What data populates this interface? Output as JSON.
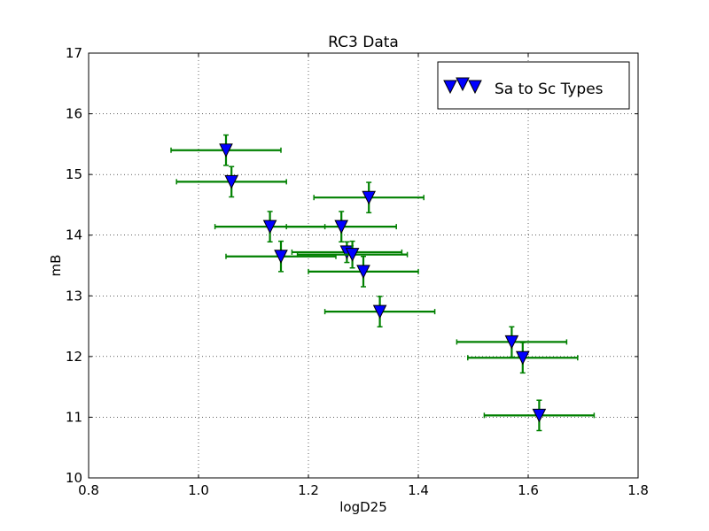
{
  "chart_data": {
    "type": "scatter",
    "title": "RC3 Data",
    "xlabel": "logD25",
    "ylabel": "mB",
    "xlim": [
      0.8,
      1.8
    ],
    "ylim": [
      10,
      17
    ],
    "x_ticks": [
      "0.8",
      "1.0",
      "1.2",
      "1.4",
      "1.6",
      "1.8"
    ],
    "y_ticks": [
      "10",
      "11",
      "12",
      "13",
      "14",
      "15",
      "16",
      "17"
    ],
    "grid": true,
    "legend_position": "top-right",
    "series": [
      {
        "name": "Sa to Sc Types",
        "marker": "triangle-down",
        "marker_color": "#0000ff",
        "errorbar_color": "#008000",
        "points": [
          {
            "x": 1.05,
            "y": 15.4,
            "xerr": 0.1,
            "yerr": 0.25
          },
          {
            "x": 1.06,
            "y": 14.88,
            "xerr": 0.1,
            "yerr": 0.25
          },
          {
            "x": 1.31,
            "y": 14.62,
            "xerr": 0.1,
            "yerr": 0.25
          },
          {
            "x": 1.13,
            "y": 14.14,
            "xerr": 0.1,
            "yerr": 0.25
          },
          {
            "x": 1.26,
            "y": 14.14,
            "xerr": 0.1,
            "yerr": 0.25
          },
          {
            "x": 1.27,
            "y": 13.72,
            "xerr": 0.1,
            "yerr": 0.17
          },
          {
            "x": 1.28,
            "y": 13.68,
            "xerr": 0.1,
            "yerr": 0.22
          },
          {
            "x": 1.15,
            "y": 13.65,
            "xerr": 0.1,
            "yerr": 0.25
          },
          {
            "x": 1.3,
            "y": 13.4,
            "xerr": 0.1,
            "yerr": 0.25
          },
          {
            "x": 1.33,
            "y": 12.74,
            "xerr": 0.1,
            "yerr": 0.25
          },
          {
            "x": 1.57,
            "y": 12.24,
            "xerr": 0.1,
            "yerr": 0.25
          },
          {
            "x": 1.59,
            "y": 11.98,
            "xerr": 0.1,
            "yerr": 0.25
          },
          {
            "x": 1.62,
            "y": 11.03,
            "xerr": 0.1,
            "yerr": 0.25
          }
        ]
      }
    ]
  }
}
